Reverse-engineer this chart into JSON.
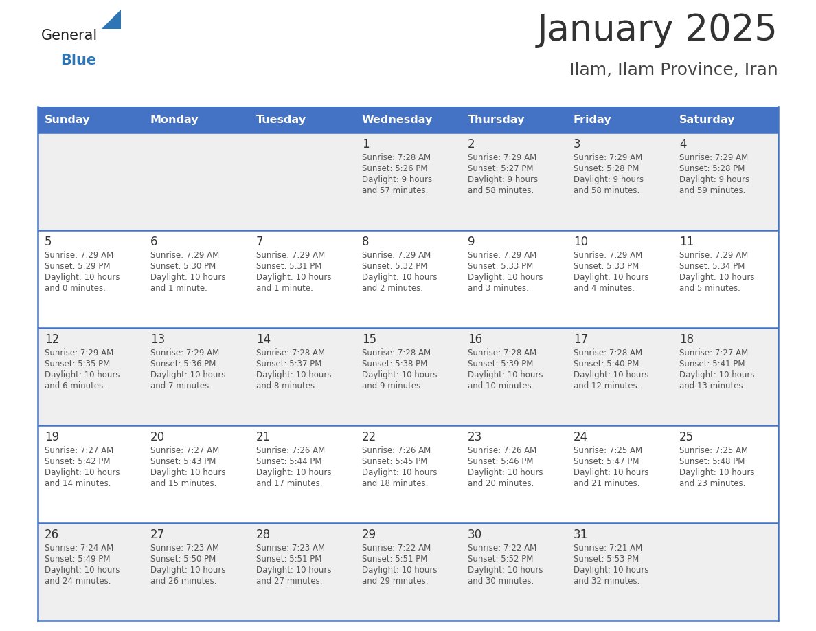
{
  "title": "January 2025",
  "subtitle": "Ilam, Ilam Province, Iran",
  "days_of_week": [
    "Sunday",
    "Monday",
    "Tuesday",
    "Wednesday",
    "Thursday",
    "Friday",
    "Saturday"
  ],
  "header_bg": "#4472C4",
  "header_text_color": "#FFFFFF",
  "cell_bg_odd": "#EFEFEF",
  "cell_bg_even": "#FFFFFF",
  "border_color": "#4472C4",
  "title_color": "#333333",
  "subtitle_color": "#444444",
  "day_num_color": "#333333",
  "cell_text_color": "#555555",
  "logo_color_general": "#222222",
  "logo_color_blue": "#2E75B6",
  "logo_triangle_color": "#2E75B6",
  "calendar_data": [
    {
      "day": 1,
      "col": 3,
      "row": 0,
      "sunrise": "7:28 AM",
      "sunset": "5:26 PM",
      "dl_hours": 9,
      "dl_mins": 57
    },
    {
      "day": 2,
      "col": 4,
      "row": 0,
      "sunrise": "7:29 AM",
      "sunset": "5:27 PM",
      "dl_hours": 9,
      "dl_mins": 58
    },
    {
      "day": 3,
      "col": 5,
      "row": 0,
      "sunrise": "7:29 AM",
      "sunset": "5:28 PM",
      "dl_hours": 9,
      "dl_mins": 58
    },
    {
      "day": 4,
      "col": 6,
      "row": 0,
      "sunrise": "7:29 AM",
      "sunset": "5:28 PM",
      "dl_hours": 9,
      "dl_mins": 59
    },
    {
      "day": 5,
      "col": 0,
      "row": 1,
      "sunrise": "7:29 AM",
      "sunset": "5:29 PM",
      "dl_hours": 10,
      "dl_mins": 0
    },
    {
      "day": 6,
      "col": 1,
      "row": 1,
      "sunrise": "7:29 AM",
      "sunset": "5:30 PM",
      "dl_hours": 10,
      "dl_mins": 1
    },
    {
      "day": 7,
      "col": 2,
      "row": 1,
      "sunrise": "7:29 AM",
      "sunset": "5:31 PM",
      "dl_hours": 10,
      "dl_mins": 1
    },
    {
      "day": 8,
      "col": 3,
      "row": 1,
      "sunrise": "7:29 AM",
      "sunset": "5:32 PM",
      "dl_hours": 10,
      "dl_mins": 2
    },
    {
      "day": 9,
      "col": 4,
      "row": 1,
      "sunrise": "7:29 AM",
      "sunset": "5:33 PM",
      "dl_hours": 10,
      "dl_mins": 3
    },
    {
      "day": 10,
      "col": 5,
      "row": 1,
      "sunrise": "7:29 AM",
      "sunset": "5:33 PM",
      "dl_hours": 10,
      "dl_mins": 4
    },
    {
      "day": 11,
      "col": 6,
      "row": 1,
      "sunrise": "7:29 AM",
      "sunset": "5:34 PM",
      "dl_hours": 10,
      "dl_mins": 5
    },
    {
      "day": 12,
      "col": 0,
      "row": 2,
      "sunrise": "7:29 AM",
      "sunset": "5:35 PM",
      "dl_hours": 10,
      "dl_mins": 6
    },
    {
      "day": 13,
      "col": 1,
      "row": 2,
      "sunrise": "7:29 AM",
      "sunset": "5:36 PM",
      "dl_hours": 10,
      "dl_mins": 7
    },
    {
      "day": 14,
      "col": 2,
      "row": 2,
      "sunrise": "7:28 AM",
      "sunset": "5:37 PM",
      "dl_hours": 10,
      "dl_mins": 8
    },
    {
      "day": 15,
      "col": 3,
      "row": 2,
      "sunrise": "7:28 AM",
      "sunset": "5:38 PM",
      "dl_hours": 10,
      "dl_mins": 9
    },
    {
      "day": 16,
      "col": 4,
      "row": 2,
      "sunrise": "7:28 AM",
      "sunset": "5:39 PM",
      "dl_hours": 10,
      "dl_mins": 10
    },
    {
      "day": 17,
      "col": 5,
      "row": 2,
      "sunrise": "7:28 AM",
      "sunset": "5:40 PM",
      "dl_hours": 10,
      "dl_mins": 12
    },
    {
      "day": 18,
      "col": 6,
      "row": 2,
      "sunrise": "7:27 AM",
      "sunset": "5:41 PM",
      "dl_hours": 10,
      "dl_mins": 13
    },
    {
      "day": 19,
      "col": 0,
      "row": 3,
      "sunrise": "7:27 AM",
      "sunset": "5:42 PM",
      "dl_hours": 10,
      "dl_mins": 14
    },
    {
      "day": 20,
      "col": 1,
      "row": 3,
      "sunrise": "7:27 AM",
      "sunset": "5:43 PM",
      "dl_hours": 10,
      "dl_mins": 15
    },
    {
      "day": 21,
      "col": 2,
      "row": 3,
      "sunrise": "7:26 AM",
      "sunset": "5:44 PM",
      "dl_hours": 10,
      "dl_mins": 17
    },
    {
      "day": 22,
      "col": 3,
      "row": 3,
      "sunrise": "7:26 AM",
      "sunset": "5:45 PM",
      "dl_hours": 10,
      "dl_mins": 18
    },
    {
      "day": 23,
      "col": 4,
      "row": 3,
      "sunrise": "7:26 AM",
      "sunset": "5:46 PM",
      "dl_hours": 10,
      "dl_mins": 20
    },
    {
      "day": 24,
      "col": 5,
      "row": 3,
      "sunrise": "7:25 AM",
      "sunset": "5:47 PM",
      "dl_hours": 10,
      "dl_mins": 21
    },
    {
      "day": 25,
      "col": 6,
      "row": 3,
      "sunrise": "7:25 AM",
      "sunset": "5:48 PM",
      "dl_hours": 10,
      "dl_mins": 23
    },
    {
      "day": 26,
      "col": 0,
      "row": 4,
      "sunrise": "7:24 AM",
      "sunset": "5:49 PM",
      "dl_hours": 10,
      "dl_mins": 24
    },
    {
      "day": 27,
      "col": 1,
      "row": 4,
      "sunrise": "7:23 AM",
      "sunset": "5:50 PM",
      "dl_hours": 10,
      "dl_mins": 26
    },
    {
      "day": 28,
      "col": 2,
      "row": 4,
      "sunrise": "7:23 AM",
      "sunset": "5:51 PM",
      "dl_hours": 10,
      "dl_mins": 27
    },
    {
      "day": 29,
      "col": 3,
      "row": 4,
      "sunrise": "7:22 AM",
      "sunset": "5:51 PM",
      "dl_hours": 10,
      "dl_mins": 29
    },
    {
      "day": 30,
      "col": 4,
      "row": 4,
      "sunrise": "7:22 AM",
      "sunset": "5:52 PM",
      "dl_hours": 10,
      "dl_mins": 30
    },
    {
      "day": 31,
      "col": 5,
      "row": 4,
      "sunrise": "7:21 AM",
      "sunset": "5:53 PM",
      "dl_hours": 10,
      "dl_mins": 32
    }
  ]
}
